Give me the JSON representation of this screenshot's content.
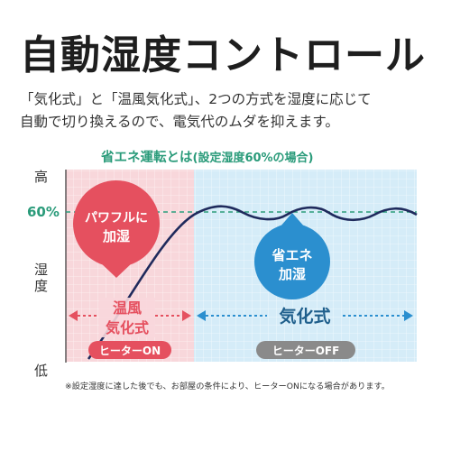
{
  "header": {
    "title": "自動湿度コントロール",
    "desc_line1": "「気化式」と「温風気化式」、2つの方式を湿度に応じて",
    "desc_line2": "自動で切り換えるので、電気代のムダを抑えます。"
  },
  "diagram": {
    "title_main": "省エネ運転とは",
    "title_sub": "(設定湿度60%の場合)",
    "y_high": "高",
    "y_level": "60%",
    "y_axis_1": "湿",
    "y_axis_2": "度",
    "y_low": "低",
    "bubble_left_1": "パワフルに",
    "bubble_left_2": "加湿",
    "bubble_right_1": "省エネ",
    "bubble_right_2": "加湿",
    "mode_left_1": "温風",
    "mode_left_2": "気化式",
    "mode_right": "気化式",
    "heater_on": "ヒーターON",
    "heater_off": "ヒーターOFF",
    "footnote": "※設定湿度に達した後でも、お部屋の条件により、ヒーターONになる場合があります。"
  },
  "colors": {
    "left_zone": "#f8d7db",
    "right_zone": "#d5ecf8",
    "red": "#e5505f",
    "blue": "#2b8fcf",
    "navy": "#1f2a5c",
    "green": "#2a9b7a",
    "gray": "#8a8a8a"
  }
}
